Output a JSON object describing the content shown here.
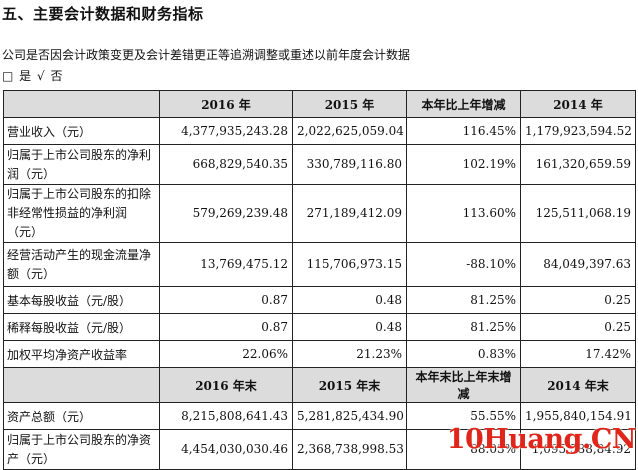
{
  "heading": "五、主要会计数据和财务指标",
  "note": "公司是否因会计政策变更及会计差错更正等追溯调整或重述以前年度会计数据",
  "options": {
    "box": "□",
    "yes": "是",
    "check": "√",
    "no": "否"
  },
  "table1": {
    "headers": [
      "",
      "2016 年",
      "2015 年",
      "本年比上年增减",
      "2014 年"
    ],
    "rows": [
      {
        "label": "营业收入（元）",
        "v2016": "4,377,935,243.28",
        "v2015": "2,022,625,059.04",
        "change": "116.45%",
        "v2014": "1,179,923,594.52"
      },
      {
        "label": "归属于上市公司股东的净利润（元）",
        "v2016": "668,829,540.35",
        "v2015": "330,789,116.80",
        "change": "102.19%",
        "v2014": "161,320,659.59"
      },
      {
        "label": "归属于上市公司股东的扣除非经常性损益的净利润（元）",
        "v2016": "579,269,239.48",
        "v2015": "271,189,412.09",
        "change": "113.60%",
        "v2014": "125,511,068.19"
      },
      {
        "label": "经营活动产生的现金流量净额（元）",
        "v2016": "13,769,475.12",
        "v2015": "115,706,973.15",
        "change": "-88.10%",
        "v2014": "84,049,397.63"
      },
      {
        "label": "基本每股收益（元/股）",
        "v2016": "0.87",
        "v2015": "0.48",
        "change": "81.25%",
        "v2014": "0.25"
      },
      {
        "label": "稀释每股收益（元/股）",
        "v2016": "0.87",
        "v2015": "0.48",
        "change": "81.25%",
        "v2014": "0.25"
      },
      {
        "label": "加权平均净资产收益率",
        "v2016": "22.06%",
        "v2015": "21.23%",
        "change": "0.83%",
        "v2014": "17.42%"
      }
    ]
  },
  "table2": {
    "headers": [
      "",
      "2016 年末",
      "2015 年末",
      "本年末比上年末增减",
      "2014 年末"
    ],
    "rows": [
      {
        "label": "资产总额（元）",
        "v2016": "8,215,808,641.43",
        "v2015": "5,281,825,434.90",
        "change": "55.55%",
        "v2014": "1,955,840,154.91"
      },
      {
        "label": "归属于上市公司股东的净资产（元）",
        "v2016": "4,454,030,030.46",
        "v2015": "2,368,738,998.53",
        "change": "88.03%",
        "v2014": "1,095,588,84.92"
      }
    ]
  },
  "watermark": "10Huang.CN"
}
